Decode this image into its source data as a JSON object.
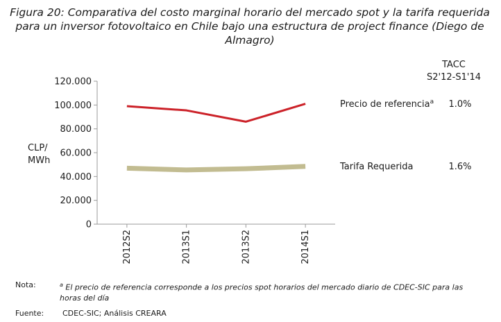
{
  "title_lines": [
    "Figura 20: Comparativa del costo marginal horario del mercado spot y la tarifa requerida",
    "para un inversor fotovoltaico en Chile bajo una estructura de project finance (Diego de",
    "Almagro)"
  ],
  "chart_data": {
    "type": "line",
    "categories": [
      "2012S2",
      "2013S1",
      "2013S2",
      "2014S1"
    ],
    "ylabel_lines": [
      "CLP/",
      "MWh"
    ],
    "ylim": [
      0,
      120000
    ],
    "ytick_values": [
      0,
      20000,
      40000,
      60000,
      80000,
      100000,
      120000
    ],
    "ytick_labels": [
      "0",
      "20.000",
      "40.000",
      "60.000",
      "80.000",
      "100.000",
      "120.000"
    ],
    "grid": false,
    "tacc_header": [
      "TACC",
      "S2'12-S1'14"
    ],
    "series": [
      {
        "name": "Precio de referencia",
        "superscript": "a",
        "values": [
          99000,
          95500,
          86000,
          101000
        ],
        "color": "#cc2229",
        "tacc": "1.0%"
      },
      {
        "name": "Tarifa Requerida",
        "values": [
          47000,
          45500,
          46500,
          48500
        ],
        "color": "#c2bc91",
        "tacc": "1.6%"
      }
    ]
  },
  "note": {
    "label": "Nota:",
    "superscript": "a",
    "text_line1": "El precio de referencia corresponde a los precios spot horarios del mercado diario de CDEC-SIC para las",
    "text_line2": "horas del día"
  },
  "source": {
    "label": "Fuente:",
    "text": "CDEC-SIC; Análisis CREARA"
  }
}
